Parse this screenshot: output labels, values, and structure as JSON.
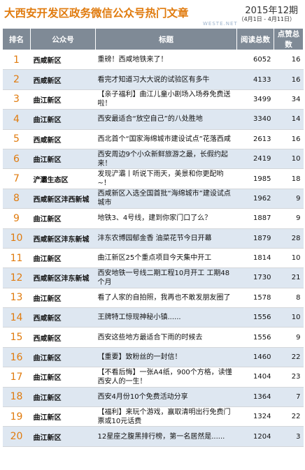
{
  "header": {
    "title": "大西安开发区政务微信公众号热门文章",
    "date": "2015年12期",
    "date_range": "（4月1日 - 4月11日）",
    "watermark": "WESTE.NET"
  },
  "columns": [
    "排名",
    "公众号",
    "标题",
    "阅读总数",
    "点赞总数"
  ],
  "rows": [
    {
      "rank": "1",
      "account": "西咸新区",
      "title": "重磅！西咸地铁来了！",
      "reads": "6052",
      "likes": "16"
    },
    {
      "rank": "2",
      "account": "西咸新区",
      "title": "看完才知道习大大说的试验区有多牛",
      "reads": "4133",
      "likes": "16"
    },
    {
      "rank": "3",
      "account": "曲江新区",
      "title": "【亲子福利】曲江儿童小剧场入场券免费送啦！",
      "reads": "3499",
      "likes": "34"
    },
    {
      "rank": "4",
      "account": "曲江新区",
      "title": "西安最适合“放空自己”的八处胜地",
      "reads": "3340",
      "likes": "14"
    },
    {
      "rank": "5",
      "account": "西咸新区",
      "title": "西北首个“国家海绵城市建设试点”花落西咸",
      "reads": "2613",
      "likes": "16"
    },
    {
      "rank": "6",
      "account": "曲江新区",
      "title": "西安周边9个小众新鲜旅游之最，长假约起来！",
      "reads": "2419",
      "likes": "10"
    },
    {
      "rank": "7",
      "account": "浐灞生态区",
      "title": "发现浐灞丨听说下雨天，美景和你更配哟~！",
      "reads": "1985",
      "likes": "18"
    },
    {
      "rank": "8",
      "account": "西咸新区沣西新城",
      "title": "西咸新区入选全国首批“海绵城市”建设试点城市",
      "reads": "1962",
      "likes": "9"
    },
    {
      "rank": "9",
      "account": "曲江新区",
      "title": "地铁3、4号线，建到你家门口了么？",
      "reads": "1887",
      "likes": "9"
    },
    {
      "rank": "10",
      "account": "西咸新区沣东新城",
      "title": "沣东农博园郁金香 油菜花节今日开幕",
      "reads": "1879",
      "likes": "28"
    },
    {
      "rank": "11",
      "account": "曲江新区",
      "title": "曲江新区25个重点项目今天集中开工",
      "reads": "1814",
      "likes": "10"
    },
    {
      "rank": "12",
      "account": "西咸新区沣东新城",
      "title": "西安地铁一号线二期工程10月开工 工期48个月",
      "reads": "1730",
      "likes": "21"
    },
    {
      "rank": "13",
      "account": "曲江新区",
      "title": "看了人家的自拍照，我再也不敢发朋友圈了",
      "reads": "1578",
      "likes": "8"
    },
    {
      "rank": "14",
      "account": "西咸新区",
      "title": "王牌特工惊现神秘小镇......",
      "reads": "1556",
      "likes": "10"
    },
    {
      "rank": "15",
      "account": "西咸新区",
      "title": "西安这些地方最适合下雨的时候去",
      "reads": "1556",
      "likes": "9"
    },
    {
      "rank": "16",
      "account": "曲江新区",
      "title": "【重要】致粉丝的一封信！",
      "reads": "1460",
      "likes": "22"
    },
    {
      "rank": "17",
      "account": "曲江新区",
      "title": "【不看后悔】一张A4纸，900个方格，读懂西安人的一生！",
      "reads": "1404",
      "likes": "23"
    },
    {
      "rank": "18",
      "account": "曲江新区",
      "title": "西安4月份10个免费活动分享",
      "reads": "1364",
      "likes": "7"
    },
    {
      "rank": "19",
      "account": "曲江新区",
      "title": "【福利】来玩个游戏，赢取清明出行免费门票或10元话费",
      "reads": "1324",
      "likes": "22"
    },
    {
      "rank": "20",
      "account": "曲江新区",
      "title": "12星座之腹黑排行榜，第一名居然是......",
      "reads": "1204",
      "likes": "3"
    }
  ],
  "colors": {
    "accent": "#e07b0e",
    "header_bg": "#7f8a96",
    "stripe": "#dee7f1"
  }
}
